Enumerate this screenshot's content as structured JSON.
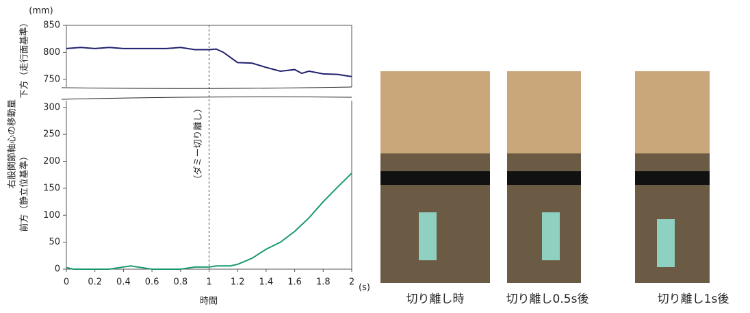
{
  "chart_data": {
    "type": "line",
    "y_label_lines": [
      "右股関節軸心の移動量",
      "下方（走行面基準）",
      "前方（静立位基準）"
    ],
    "y_unit": "(mm)",
    "x_unit": "(s)",
    "x_label": "時間",
    "annotation": "（ダミー切り離し）",
    "vline": 1,
    "xlim": [
      0,
      2
    ],
    "xticks": [
      0,
      0.2,
      0.4,
      0.6,
      0.8,
      1,
      1.2,
      1.4,
      1.6,
      1.8,
      2
    ],
    "ylim": [
      0,
      850
    ],
    "ybreak": [
      300,
      750
    ],
    "yticks": [
      0,
      50,
      100,
      150,
      200,
      250,
      300,
      750,
      800,
      850
    ],
    "series": [
      {
        "color": "#1f1f6e",
        "x": [
          0,
          0.1,
          0.2,
          0.3,
          0.4,
          0.5,
          0.6,
          0.7,
          0.8,
          0.9,
          1.0,
          1.05,
          1.1,
          1.2,
          1.3,
          1.4,
          1.5,
          1.6,
          1.65,
          1.7,
          1.8,
          1.9,
          2.0
        ],
        "values": [
          807,
          809,
          807,
          809,
          807,
          807,
          807,
          807,
          809,
          805,
          805,
          806,
          800,
          781,
          780,
          772,
          765,
          768,
          761,
          765,
          760,
          759,
          755
        ]
      },
      {
        "color": "#1a9a6a",
        "x": [
          0,
          0.05,
          0.3,
          0.45,
          0.6,
          0.8,
          0.9,
          1.0,
          1.05,
          1.15,
          1.2,
          1.3,
          1.4,
          1.5,
          1.6,
          1.7,
          1.8,
          1.9,
          2.0
        ],
        "values": [
          3,
          0,
          0,
          6,
          0,
          0,
          4,
          4,
          6,
          6,
          9,
          20,
          37,
          50,
          70,
          95,
          125,
          152,
          178
        ]
      }
    ]
  },
  "photos": [
    {
      "caption": "切り離し時"
    },
    {
      "caption": "切り離し0.5s後"
    },
    {
      "caption": "切り離し1s後"
    }
  ]
}
